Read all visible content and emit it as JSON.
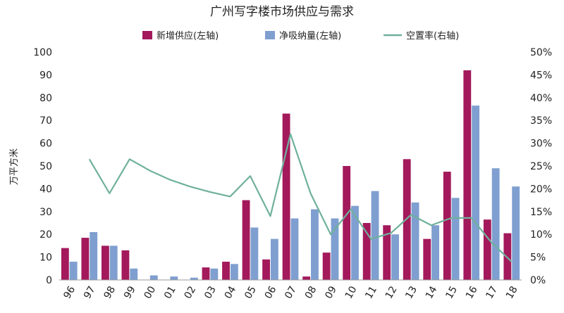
{
  "chart_data": {
    "type": "bar",
    "title": "广州写字楼市场供应与需求",
    "ylabel": "万平方米",
    "ylim": [
      0,
      100
    ],
    "y2lim": [
      0,
      50
    ],
    "yticks": [
      "0",
      "10",
      "20",
      "30",
      "40",
      "50",
      "60",
      "70",
      "80",
      "90",
      "100"
    ],
    "y2ticks": [
      "0%",
      "5%",
      "10%",
      "15%",
      "20%",
      "25%",
      "30%",
      "35%",
      "40%",
      "45%",
      "50%"
    ],
    "categories": [
      "96",
      "97",
      "98",
      "99",
      "00",
      "01",
      "02",
      "03",
      "04",
      "05",
      "06",
      "07",
      "08",
      "09",
      "10",
      "11",
      "12",
      "13",
      "14",
      "15",
      "16",
      "17",
      "18"
    ],
    "legend_position": "top-center",
    "grid": false,
    "series": [
      {
        "name": "新增供应(左轴)",
        "kind": "bar",
        "axis": "left",
        "color": "#a3195b",
        "values": [
          14,
          18.5,
          15,
          13,
          0,
          0,
          0,
          5.5,
          8,
          35,
          9,
          73,
          1.5,
          12,
          50,
          25,
          24,
          53,
          18,
          47.5,
          92,
          26.5,
          20.5
        ]
      },
      {
        "name": "净吸纳量(左轴)",
        "kind": "bar",
        "axis": "left",
        "color": "#7f9fd0",
        "values": [
          8,
          21,
          15,
          5,
          2,
          1.5,
          1,
          5,
          7,
          23,
          18,
          27,
          31,
          27,
          32.5,
          39,
          20,
          34,
          24,
          36,
          76.5,
          49,
          41
        ]
      },
      {
        "name": "空置率(右轴)",
        "kind": "line",
        "axis": "right",
        "color": "#6fb09c",
        "values": [
          null,
          26.5,
          19,
          26.5,
          24,
          22,
          20.5,
          19.3,
          18.3,
          22.8,
          14,
          32,
          19,
          10,
          15.5,
          9,
          10.3,
          14.3,
          12,
          13.6,
          13.6,
          8.2,
          4
        ]
      }
    ]
  }
}
